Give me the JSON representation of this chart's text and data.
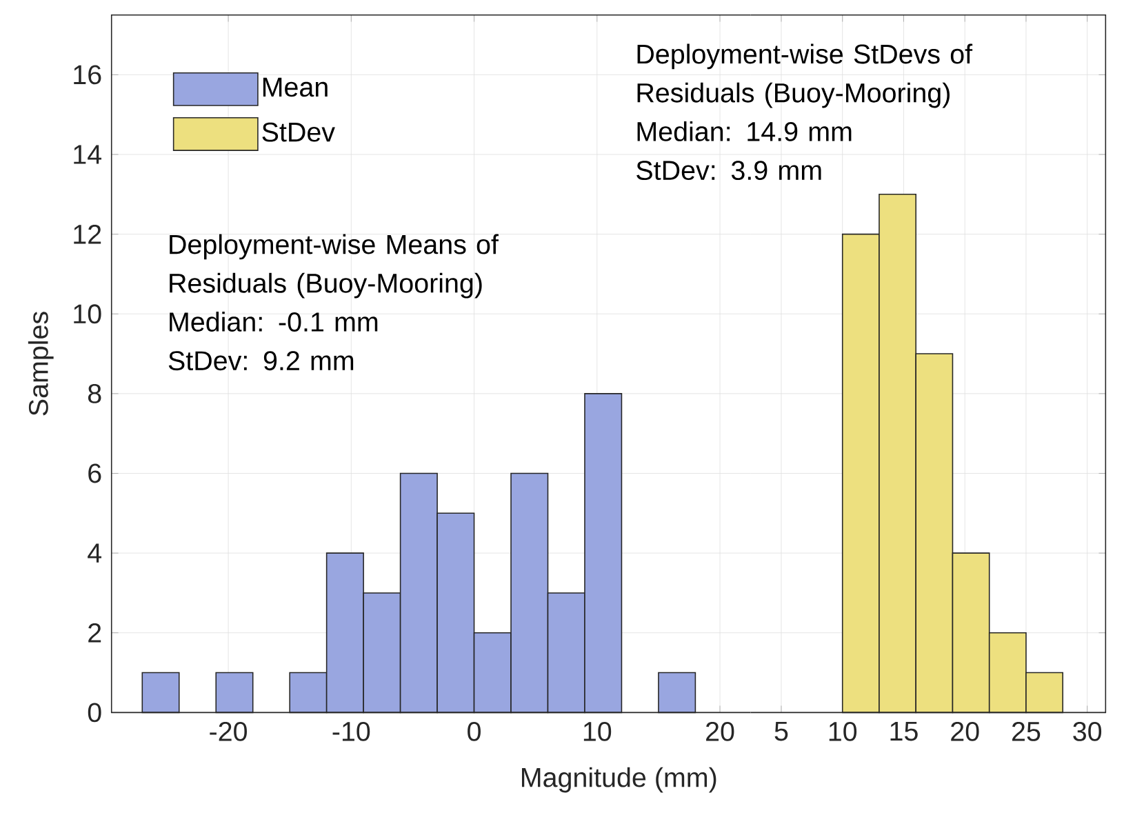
{
  "chart_data": [
    {
      "type": "histogram",
      "xlabel": "Magnitude (mm)",
      "ylabel": "Samples",
      "xlim": [
        -29.5,
        22.5
      ],
      "ylim": [
        0,
        17.5
      ],
      "xticks": [
        -20,
        -10,
        0,
        10,
        20
      ],
      "yticks": [
        0,
        2,
        4,
        6,
        8,
        10,
        12,
        14,
        16
      ],
      "grid": true,
      "legend": "top left",
      "annotations": [
        "Deployment-wise Means of Residuals (Buoy-Mooring)",
        "Median: -0.1 mm",
        "StDev: 9.2 mm"
      ],
      "bins": [
        -27,
        -24,
        -21,
        -18,
        -15,
        -12,
        -9,
        -6,
        -3,
        0,
        3,
        6,
        9,
        12,
        15,
        18
      ],
      "series": [
        {
          "name": "Mean",
          "color": "#99a6e0",
          "values": [
            1,
            0,
            1,
            0,
            1,
            4,
            3,
            6,
            5,
            2,
            6,
            3,
            8,
            0,
            1
          ]
        }
      ]
    },
    {
      "type": "histogram",
      "xlim": [
        2.5,
        31.5
      ],
      "ylim": [
        0,
        17.5
      ],
      "xticks": [
        5,
        10,
        15,
        20,
        25,
        30
      ],
      "yticks": [
        0,
        2,
        4,
        6,
        8,
        10,
        12,
        14,
        16
      ],
      "grid": true,
      "legend": "top left",
      "tick_labels": "x",
      "annotations": [
        "Deployment-wise StDevs of Residuals (Buoy-Mooring)",
        "Median: 14.9 mm",
        "StDev: 3.9 mm"
      ],
      "bins": [
        10,
        13,
        16,
        19,
        22,
        25,
        28
      ],
      "series": [
        {
          "name": "StDev",
          "color": "#ede07f",
          "values": [
            12,
            13,
            9,
            4,
            2,
            1
          ]
        }
      ]
    }
  ]
}
